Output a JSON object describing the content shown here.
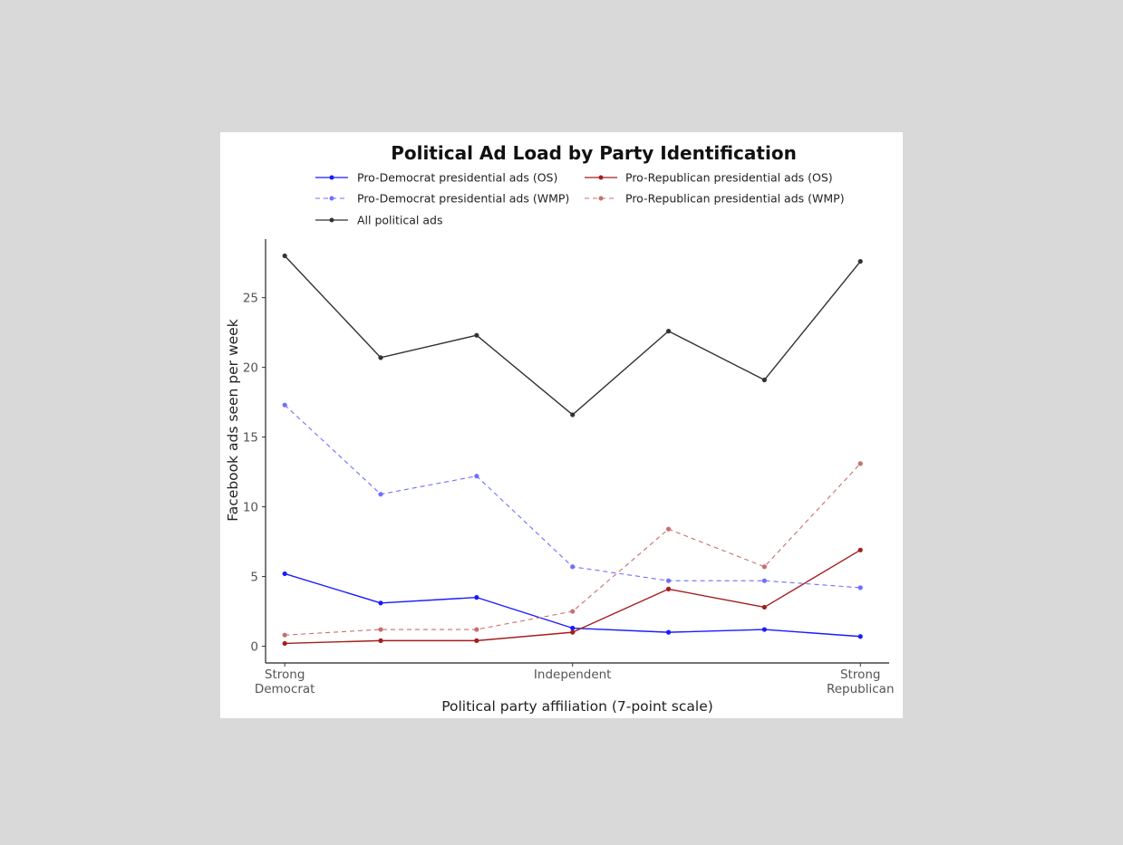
{
  "chart_data": {
    "type": "line",
    "title": "Political Ad Load by Party Identification",
    "xlabel": "Political party affiliation (7-point scale)",
    "ylabel": "Facebook ads seen per week",
    "x": [
      1,
      2,
      3,
      4,
      5,
      6,
      7
    ],
    "xlim": [
      0.8,
      7.3
    ],
    "ylim": [
      -1.2,
      29.2
    ],
    "x_ticks": [
      {
        "x": 1,
        "lines": [
          "Strong",
          "Democrat"
        ]
      },
      {
        "x": 4,
        "lines": [
          "Independent"
        ]
      },
      {
        "x": 7,
        "lines": [
          "Strong",
          "Republican"
        ]
      }
    ],
    "y_ticks": [
      {
        "value": 0,
        "label": "0"
      },
      {
        "value": 5,
        "label": "5"
      },
      {
        "value": 10,
        "label": "10"
      },
      {
        "value": 15,
        "label": "15"
      },
      {
        "value": 20,
        "label": "20"
      },
      {
        "value": 25,
        "label": "25"
      }
    ],
    "grid": false,
    "legend_position": "top",
    "series": [
      {
        "id": "dem-os",
        "name": "Pro-Democrat presidential ads (OS)",
        "color": "#1a1aff",
        "dashed": false,
        "values": [
          5.2,
          3.1,
          3.5,
          1.3,
          1.0,
          1.2,
          0.7
        ]
      },
      {
        "id": "rep-os",
        "name": "Pro-Republican presidential ads (OS)",
        "color": "#a51d1d",
        "dashed": false,
        "values": [
          0.2,
          0.4,
          0.4,
          1.0,
          4.1,
          2.8,
          6.9
        ]
      },
      {
        "id": "dem-wmp",
        "name": "Pro-Democrat presidential ads (WMP)",
        "color": "#6f6fff",
        "dashed": true,
        "values": [
          17.3,
          10.9,
          12.2,
          5.7,
          4.7,
          4.7,
          4.2
        ]
      },
      {
        "id": "rep-wmp",
        "name": "Pro-Republican presidential ads (WMP)",
        "color": "#c86f6f",
        "dashed": true,
        "values": [
          0.8,
          1.2,
          1.2,
          2.5,
          8.4,
          5.7,
          13.1
        ]
      },
      {
        "id": "all",
        "name": "All political ads",
        "color": "#333333",
        "dashed": false,
        "values": [
          28.0,
          20.7,
          22.3,
          16.6,
          22.6,
          19.1,
          27.6
        ]
      }
    ]
  }
}
